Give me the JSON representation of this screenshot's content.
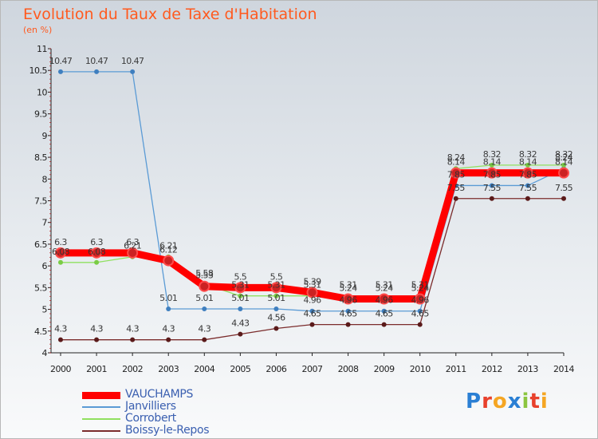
{
  "header": {
    "title": "Evolution du Taux de Taxe d'Habitation",
    "subtitle": "(en %)"
  },
  "logo": {
    "text": "Proxiti",
    "colors": [
      "#2a7fd4",
      "#e8412c",
      "#f5a623",
      "#2a7fd4",
      "#8bc53f",
      "#e8412c",
      "#f5a623"
    ]
  },
  "chart_data": {
    "type": "line",
    "title": "Evolution du Taux de Taxe d'Habitation",
    "ylabel": "(en %)",
    "xlabel": "",
    "ylim": [
      4,
      11
    ],
    "yticks": [
      "4",
      "4.5",
      "5",
      "5.5",
      "6",
      "6.5",
      "7",
      "7.5",
      "8",
      "8.5",
      "9",
      "9.5",
      "10",
      "10.5",
      "11"
    ],
    "x": [
      "2000",
      "2001",
      "2002",
      "2003",
      "2004",
      "2005",
      "2006",
      "2007",
      "2008",
      "2009",
      "2010",
      "2011",
      "2012",
      "2013",
      "2014"
    ],
    "grid": false,
    "legend_position": "bottom-left",
    "series": [
      {
        "name": "VAUCHAMPS",
        "color": "#ff0000",
        "marker": "#cc2222",
        "width": "thick",
        "values": [
          6.3,
          6.3,
          6.3,
          6.12,
          5.53,
          5.5,
          5.5,
          5.39,
          5.24,
          5.24,
          5.24,
          8.14,
          8.14,
          8.14,
          8.14
        ]
      },
      {
        "name": "Janvilliers",
        "color": "#5b9bd5",
        "marker": "#3f7fbf",
        "width": "thin",
        "values": [
          10.47,
          10.47,
          10.47,
          5.01,
          5.01,
          5.01,
          5.01,
          4.96,
          4.96,
          4.96,
          4.96,
          7.85,
          7.85,
          7.85,
          8.24
        ]
      },
      {
        "name": "Corrobert",
        "color": "#90e060",
        "marker": "#7acc45",
        "width": "thin",
        "values": [
          6.08,
          6.08,
          6.21,
          6.21,
          5.58,
          5.31,
          5.31,
          5.31,
          5.31,
          5.31,
          5.31,
          8.24,
          8.32,
          8.32,
          8.32
        ]
      },
      {
        "name": "Boissy-le-Repos",
        "color": "#7b2c2c",
        "marker": "#5a1a1a",
        "width": "thin",
        "values": [
          4.3,
          4.3,
          4.3,
          4.3,
          4.3,
          4.43,
          4.56,
          4.65,
          4.65,
          4.65,
          4.65,
          7.55,
          7.55,
          7.55,
          7.55
        ]
      }
    ],
    "point_labels": [
      {
        "x": "2000",
        "y": 10.47,
        "text": "10.47",
        "series": "Janvilliers"
      },
      {
        "x": "2001",
        "y": 10.47,
        "text": "10.47",
        "series": "Janvilliers"
      },
      {
        "x": "2002",
        "y": 10.47,
        "text": "10.47",
        "series": "Janvilliers"
      },
      {
        "x": "2003",
        "y": 5.01,
        "text": "5.01",
        "series": "Janvilliers"
      },
      {
        "x": "2004",
        "y": 5.01,
        "text": "5.01",
        "series": "Janvilliers"
      },
      {
        "x": "2005",
        "y": 5.01,
        "text": "5.01",
        "series": "Janvilliers"
      },
      {
        "x": "2006",
        "y": 5.01,
        "text": "5.01",
        "series": "Janvilliers"
      },
      {
        "x": "2007",
        "y": 4.96,
        "text": "4.96",
        "series": "Janvilliers"
      },
      {
        "x": "2008",
        "y": 4.96,
        "text": "4.96",
        "series": "Janvilliers"
      },
      {
        "x": "2009",
        "y": 4.96,
        "text": "4.96",
        "series": "Janvilliers"
      },
      {
        "x": "2010",
        "y": 4.96,
        "text": "4.96",
        "series": "Janvilliers"
      },
      {
        "x": "2011",
        "y": 7.85,
        "text": "7.85",
        "series": "Janvilliers"
      },
      {
        "x": "2012",
        "y": 7.85,
        "text": "7.85",
        "series": "Janvilliers"
      },
      {
        "x": "2013",
        "y": 7.85,
        "text": "7.85",
        "series": "Janvilliers"
      },
      {
        "x": "2014",
        "y": 8.24,
        "text": "8.24",
        "series": "Janvilliers"
      },
      {
        "x": "2000",
        "y": 6.3,
        "text": "6.3",
        "series": "VAUCHAMPS"
      },
      {
        "x": "2001",
        "y": 6.3,
        "text": "6.3",
        "series": "VAUCHAMPS"
      },
      {
        "x": "2002",
        "y": 6.3,
        "text": "6.3",
        "series": "VAUCHAMPS"
      },
      {
        "x": "2003",
        "y": 6.12,
        "text": "6.12",
        "series": "VAUCHAMPS"
      },
      {
        "x": "2004",
        "y": 5.53,
        "text": "5.53",
        "series": "VAUCHAMPS"
      },
      {
        "x": "2005",
        "y": 5.5,
        "text": "5.5",
        "series": "VAUCHAMPS"
      },
      {
        "x": "2006",
        "y": 5.5,
        "text": "5.5",
        "series": "VAUCHAMPS"
      },
      {
        "x": "2007",
        "y": 5.39,
        "text": "5.39",
        "series": "VAUCHAMPS"
      },
      {
        "x": "2008",
        "y": 5.24,
        "text": "5.24",
        "series": "VAUCHAMPS"
      },
      {
        "x": "2009",
        "y": 5.24,
        "text": "5.24",
        "series": "VAUCHAMPS"
      },
      {
        "x": "2010",
        "y": 5.24,
        "text": "5.24",
        "series": "VAUCHAMPS"
      },
      {
        "x": "2011",
        "y": 8.14,
        "text": "8.14",
        "series": "VAUCHAMPS"
      },
      {
        "x": "2012",
        "y": 8.14,
        "text": "8.14",
        "series": "VAUCHAMPS"
      },
      {
        "x": "2013",
        "y": 8.14,
        "text": "8.14",
        "series": "VAUCHAMPS"
      },
      {
        "x": "2014",
        "y": 8.14,
        "text": "8.14",
        "series": "VAUCHAMPS"
      },
      {
        "x": "2000",
        "y": 6.08,
        "text": "6.08",
        "series": "Corrobert"
      },
      {
        "x": "2001",
        "y": 6.08,
        "text": "6.08",
        "series": "Corrobert"
      },
      {
        "x": "2002",
        "y": 6.21,
        "text": "6.21",
        "series": "Corrobert"
      },
      {
        "x": "2003",
        "y": 6.21,
        "text": "6.21",
        "series": "Corrobert"
      },
      {
        "x": "2004",
        "y": 5.58,
        "text": "5.58",
        "series": "Corrobert"
      },
      {
        "x": "2005",
        "y": 5.31,
        "text": "5.31",
        "series": "Corrobert"
      },
      {
        "x": "2006",
        "y": 5.31,
        "text": "5.31",
        "series": "Corrobert"
      },
      {
        "x": "2007",
        "y": 5.31,
        "text": "5.31",
        "series": "Corrobert"
      },
      {
        "x": "2008",
        "y": 5.31,
        "text": "5.31",
        "series": "Corrobert"
      },
      {
        "x": "2009",
        "y": 5.31,
        "text": "5.31",
        "series": "Corrobert"
      },
      {
        "x": "2010",
        "y": 5.31,
        "text": "5.31",
        "series": "Corrobert"
      },
      {
        "x": "2011",
        "y": 8.24,
        "text": "8.24",
        "series": "Corrobert"
      },
      {
        "x": "2012",
        "y": 8.32,
        "text": "8.32",
        "series": "Corrobert"
      },
      {
        "x": "2013",
        "y": 8.32,
        "text": "8.32",
        "series": "Corrobert"
      },
      {
        "x": "2014",
        "y": 8.32,
        "text": "8.32",
        "series": "Corrobert"
      },
      {
        "x": "2000",
        "y": 4.3,
        "text": "4.3",
        "series": "Boissy-le-Repos"
      },
      {
        "x": "2001",
        "y": 4.3,
        "text": "4.3",
        "series": "Boissy-le-Repos"
      },
      {
        "x": "2002",
        "y": 4.3,
        "text": "4.3",
        "series": "Boissy-le-Repos"
      },
      {
        "x": "2003",
        "y": 4.3,
        "text": "4.3",
        "series": "Boissy-le-Repos"
      },
      {
        "x": "2004",
        "y": 4.3,
        "text": "4.3",
        "series": "Boissy-le-Repos"
      },
      {
        "x": "2005",
        "y": 4.43,
        "text": "4.43",
        "series": "Boissy-le-Repos"
      },
      {
        "x": "2006",
        "y": 4.56,
        "text": "4.56",
        "series": "Boissy-le-Repos"
      },
      {
        "x": "2007",
        "y": 4.65,
        "text": "4.65",
        "series": "Boissy-le-Repos"
      },
      {
        "x": "2008",
        "y": 4.65,
        "text": "4.65",
        "series": "Boissy-le-Repos"
      },
      {
        "x": "2009",
        "y": 4.65,
        "text": "4.65",
        "series": "Boissy-le-Repos"
      },
      {
        "x": "2010",
        "y": 4.65,
        "text": "4.65",
        "series": "Boissy-le-Repos"
      },
      {
        "x": "2011",
        "y": 7.55,
        "text": "7.55",
        "series": "Boissy-le-Repos"
      },
      {
        "x": "2012",
        "y": 7.55,
        "text": "7.55",
        "series": "Boissy-le-Repos"
      },
      {
        "x": "2013",
        "y": 7.55,
        "text": "7.55",
        "series": "Boissy-le-Repos"
      },
      {
        "x": "2014",
        "y": 7.55,
        "text": "7.55",
        "series": "Boissy-le-Repos"
      }
    ]
  }
}
